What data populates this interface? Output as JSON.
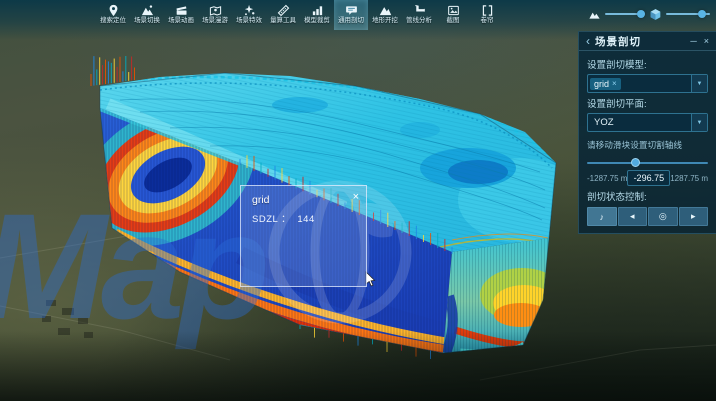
{
  "toolbar": {
    "active_index": 7,
    "items": [
      {
        "label": "搜索定位",
        "icon": "location-pin-icon"
      },
      {
        "label": "场景切换",
        "icon": "scene-mountain-icon"
      },
      {
        "label": "场景动画",
        "icon": "clapperboard-icon"
      },
      {
        "label": "场景漫游",
        "icon": "map-roam-icon"
      },
      {
        "label": "场景特效",
        "icon": "sparkles-icon"
      },
      {
        "label": "量算工具",
        "icon": "ruler-icon"
      },
      {
        "label": "模型裁剪",
        "icon": "bar-chart-icon"
      },
      {
        "label": "通用剖切",
        "icon": "speech-bubble-icon"
      },
      {
        "label": "地形开挖",
        "icon": "terrain-icon"
      },
      {
        "label": "管线分析",
        "icon": "pipe-icon"
      },
      {
        "label": "截图",
        "icon": "screenshot-icon"
      },
      {
        "label": "卷帘",
        "icon": "split-view-icon"
      }
    ]
  },
  "panel": {
    "title": "场景剖切",
    "back_glyph": "‹",
    "minimize_glyph": "─",
    "close_glyph": "×",
    "model_label": "设置剖切模型:",
    "model_tag": "grid",
    "model_tag_remove_glyph": "×",
    "dropdown_arrow_glyph": "▼",
    "plane_label": "设置剖切平面:",
    "plane_value": "YOZ",
    "slider_hint": "请移动滑块设置切割轴线",
    "slider_percent": 40,
    "range_min": "-1287.75 m",
    "current_value": "-296.75",
    "range_max": "1287.75 m",
    "control_label": "剖切状态控制:",
    "control_buttons": [
      {
        "name": "play-pause-button",
        "glyph": "♪"
      },
      {
        "name": "step-backward-button",
        "glyph": "◂"
      },
      {
        "name": "reset-button",
        "glyph": "◎"
      },
      {
        "name": "step-forward-button",
        "glyph": "▸"
      }
    ]
  },
  "popup": {
    "title": "grid",
    "attr_label": "SDZL",
    "attr_sep": "：",
    "attr_value": "144",
    "close_glyph": "×"
  },
  "watermark": {
    "text": "Map"
  },
  "colors": {
    "accent": "#4aa0d8",
    "panel_bg": "#0a2a3a",
    "toolbar_teal": "#0d3d4d",
    "watermark_blue": "#2a6cd8",
    "model_top": "#2ec2e4",
    "model_face_blue": "#2255cc",
    "band_orange": "#ff7612",
    "band_red": "#e03008",
    "band_yellow": "#ffd53d"
  }
}
